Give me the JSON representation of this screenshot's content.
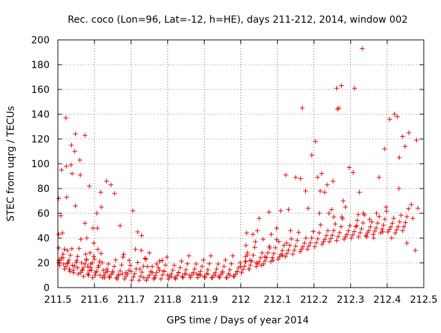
{
  "chart_data": {
    "type": "scatter",
    "title": "Rec. coco (Lon=96, Lat=-12, h=HE), days 211-212, 2014, window 002",
    "xlabel": "GPS time / Days of year 2014",
    "ylabel": "STEC from uqrg / TECUs",
    "xlim": [
      211.5,
      212.5
    ],
    "ylim": [
      0,
      200
    ],
    "x_ticks": [
      "211.5",
      "211.6",
      "211.7",
      "211.8",
      "211.9",
      "212",
      "212.1",
      "212.2",
      "212.3",
      "212.4",
      "212.5"
    ],
    "y_ticks": [
      "0",
      "20",
      "40",
      "60",
      "80",
      "100",
      "120",
      "140",
      "160",
      "180",
      "200"
    ],
    "grid": true,
    "marker": "plus",
    "color": "#e00000",
    "series": [
      {
        "points": [
          [
            211.502,
            72
          ],
          [
            211.502,
            43
          ],
          [
            211.502,
            32
          ],
          [
            211.503,
            22
          ],
          [
            211.505,
            18
          ],
          [
            211.508,
            58
          ],
          [
            211.51,
            95
          ],
          [
            211.512,
            44
          ],
          [
            211.514,
            24
          ],
          [
            211.516,
            19
          ],
          [
            211.518,
            15
          ],
          [
            211.522,
            137
          ],
          [
            211.523,
            98
          ],
          [
            211.524,
            73
          ],
          [
            211.526,
            30
          ],
          [
            211.528,
            20
          ],
          [
            211.531,
            15
          ],
          [
            211.533,
            13
          ],
          [
            211.536,
            99
          ],
          [
            211.537,
            115
          ],
          [
            211.539,
            92
          ],
          [
            211.54,
            18
          ],
          [
            211.543,
            12
          ],
          [
            211.546,
            110
          ],
          [
            211.548,
            66
          ],
          [
            211.548,
            124
          ],
          [
            211.552,
            22
          ],
          [
            211.554,
            16
          ],
          [
            211.556,
            11
          ],
          [
            211.56,
            103
          ],
          [
            211.561,
            91
          ],
          [
            211.563,
            39
          ],
          [
            211.565,
            20
          ],
          [
            211.567,
            14
          ],
          [
            211.57,
            9
          ],
          [
            211.574,
            123
          ],
          [
            211.574,
            52
          ],
          [
            211.576,
            27
          ],
          [
            211.578,
            22
          ],
          [
            211.579,
            40
          ],
          [
            211.582,
            17
          ],
          [
            211.584,
            10
          ],
          [
            211.586,
            82
          ],
          [
            211.588,
            28
          ],
          [
            211.59,
            19
          ],
          [
            211.592,
            14
          ],
          [
            211.595,
            8
          ],
          [
            211.596,
            48
          ],
          [
            211.598,
            36
          ],
          [
            211.6,
            23
          ],
          [
            211.603,
            12
          ],
          [
            211.606,
            60
          ],
          [
            211.608,
            48
          ],
          [
            211.609,
            31
          ],
          [
            211.612,
            18
          ],
          [
            211.615,
            10
          ],
          [
            211.617,
            77
          ],
          [
            211.619,
            65
          ],
          [
            211.621,
            20
          ],
          [
            211.624,
            14
          ],
          [
            211.627,
            8
          ],
          [
            211.633,
            86
          ],
          [
            211.636,
            13
          ],
          [
            211.64,
            9
          ],
          [
            211.645,
            83
          ],
          [
            211.65,
            12
          ],
          [
            211.655,
            76
          ],
          [
            211.66,
            8
          ],
          [
            211.665,
            10
          ],
          [
            211.67,
            50
          ],
          [
            211.676,
            11
          ],
          [
            211.68,
            27
          ],
          [
            211.686,
            12
          ],
          [
            211.695,
            22
          ],
          [
            211.7,
            13
          ],
          [
            211.705,
            62
          ],
          [
            211.712,
            31
          ],
          [
            211.718,
            45
          ],
          [
            211.724,
            15
          ],
          [
            211.728,
            30
          ],
          [
            211.729,
            42
          ],
          [
            211.735,
            8
          ],
          [
            211.741,
            23
          ],
          [
            211.745,
            17
          ],
          [
            211.75,
            28
          ],
          [
            211.758,
            12
          ],
          [
            211.765,
            8
          ],
          [
            211.77,
            19
          ],
          [
            211.778,
            14
          ],
          [
            211.785,
            22
          ],
          [
            211.79,
            13
          ],
          [
            211.8,
            10
          ],
          [
            211.81,
            9
          ],
          [
            211.82,
            8
          ],
          [
            211.83,
            12
          ],
          [
            211.84,
            9
          ],
          [
            211.85,
            11
          ],
          [
            211.86,
            10
          ],
          [
            211.87,
            12
          ],
          [
            211.88,
            11
          ],
          [
            211.89,
            10
          ],
          [
            211.9,
            9
          ],
          [
            211.91,
            11
          ],
          [
            211.92,
            8
          ],
          [
            211.93,
            10
          ],
          [
            211.94,
            9
          ],
          [
            211.95,
            12
          ],
          [
            211.96,
            8
          ],
          [
            211.97,
            10
          ],
          [
            211.98,
            9
          ],
          [
            211.99,
            13
          ],
          [
            212.0,
            17
          ],
          [
            212.012,
            21
          ],
          [
            212.013,
            25
          ],
          [
            212.014,
            34
          ],
          [
            212.016,
            44
          ],
          [
            212.018,
            28
          ],
          [
            212.023,
            15
          ],
          [
            212.025,
            22
          ],
          [
            212.033,
            43
          ],
          [
            212.04,
            37
          ],
          [
            212.042,
            20
          ],
          [
            212.045,
            46
          ],
          [
            212.05,
            56
          ],
          [
            212.056,
            18
          ],
          [
            212.061,
            39
          ],
          [
            212.066,
            25
          ],
          [
            212.077,
            61
          ],
          [
            212.079,
            32
          ],
          [
            212.083,
            43
          ],
          [
            212.088,
            22
          ],
          [
            212.098,
            48
          ],
          [
            212.104,
            37
          ],
          [
            212.109,
            62
          ],
          [
            212.114,
            26
          ],
          [
            212.123,
            91
          ],
          [
            212.125,
            36
          ],
          [
            212.13,
            63
          ],
          [
            212.136,
            46
          ],
          [
            212.15,
            89
          ],
          [
            212.163,
            88
          ],
          [
            212.168,
            145
          ],
          [
            212.177,
            78
          ],
          [
            212.184,
            64
          ],
          [
            212.194,
            107
          ],
          [
            212.204,
            118
          ],
          [
            212.21,
            89
          ],
          [
            212.215,
            60
          ],
          [
            212.217,
            78
          ],
          [
            212.221,
            92
          ],
          [
            212.229,
            77
          ],
          [
            212.236,
            83
          ],
          [
            212.241,
            60
          ],
          [
            212.248,
            63
          ],
          [
            212.252,
            86
          ],
          [
            212.254,
            57
          ],
          [
            212.262,
            161
          ],
          [
            212.264,
            144
          ],
          [
            212.268,
            145
          ],
          [
            212.275,
            163
          ],
          [
            212.276,
            57
          ],
          [
            212.28,
            70
          ],
          [
            212.286,
            65
          ],
          [
            212.296,
            97
          ],
          [
            212.307,
            93
          ],
          [
            212.311,
            161
          ],
          [
            212.317,
            50
          ],
          [
            212.321,
            59
          ],
          [
            212.324,
            77
          ],
          [
            212.332,
            193
          ],
          [
            212.335,
            60
          ],
          [
            212.344,
            41
          ],
          [
            212.352,
            55
          ],
          [
            212.363,
            40
          ],
          [
            212.371,
            60
          ],
          [
            212.378,
            89
          ],
          [
            212.388,
            45
          ],
          [
            212.393,
            112
          ],
          [
            212.397,
            65
          ],
          [
            212.407,
            136
          ],
          [
            212.412,
            40
          ],
          [
            212.42,
            140
          ],
          [
            212.428,
            138
          ],
          [
            212.432,
            80
          ],
          [
            212.433,
            105
          ],
          [
            212.442,
            122
          ],
          [
            212.449,
            114
          ],
          [
            212.454,
            36
          ],
          [
            212.459,
            125
          ],
          [
            212.466,
            67
          ],
          [
            212.47,
            56
          ],
          [
            212.477,
            30
          ],
          [
            212.48,
            119
          ],
          [
            212.484,
            64
          ]
        ],
        "lower_band": [
          [
            211.51,
            20
          ],
          [
            211.53,
            17
          ],
          [
            211.55,
            14
          ],
          [
            211.57,
            12
          ],
          [
            211.59,
            11
          ],
          [
            211.61,
            10
          ],
          [
            211.63,
            8
          ],
          [
            211.65,
            8
          ],
          [
            211.67,
            7
          ],
          [
            211.69,
            7
          ],
          [
            211.71,
            6
          ],
          [
            211.73,
            6
          ],
          [
            211.75,
            6
          ],
          [
            211.77,
            7
          ],
          [
            211.79,
            7
          ],
          [
            211.81,
            7
          ],
          [
            211.83,
            7
          ],
          [
            211.85,
            8
          ],
          [
            211.87,
            8
          ],
          [
            211.89,
            8
          ],
          [
            211.91,
            8
          ],
          [
            211.93,
            8
          ],
          [
            211.95,
            8
          ],
          [
            211.97,
            8
          ],
          [
            211.99,
            9
          ],
          [
            212.01,
            12
          ],
          [
            212.03,
            15
          ],
          [
            212.05,
            17
          ],
          [
            212.07,
            19
          ],
          [
            212.09,
            21
          ],
          [
            212.11,
            23
          ],
          [
            212.13,
            25
          ],
          [
            212.15,
            27
          ],
          [
            212.17,
            29
          ],
          [
            212.19,
            31
          ],
          [
            212.21,
            33
          ],
          [
            212.23,
            35
          ],
          [
            212.25,
            37
          ],
          [
            212.27,
            38
          ],
          [
            212.29,
            39
          ],
          [
            212.31,
            40
          ],
          [
            212.33,
            41
          ],
          [
            212.35,
            42
          ],
          [
            212.37,
            43
          ],
          [
            212.39,
            44
          ],
          [
            212.41,
            45
          ],
          [
            212.43,
            44
          ],
          [
            212.45,
            46
          ]
        ]
      }
    ]
  }
}
